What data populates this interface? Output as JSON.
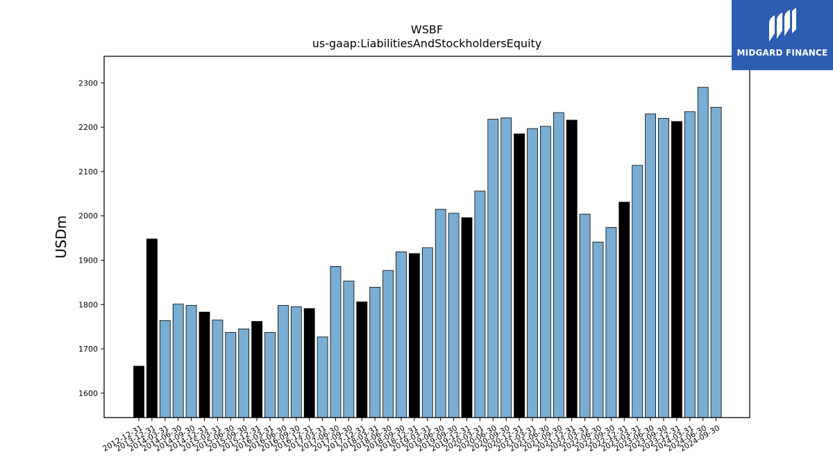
{
  "brand": {
    "name": "MIDGARD FINANCE",
    "bg_color": "#2c5db1",
    "fg_color": "#ffffff",
    "icon": "midgard-logo-icon"
  },
  "chart_data": {
    "type": "bar",
    "title": "WSBF",
    "subtitle": "us-gaap:LiabilitiesAndStockholdersEquity",
    "xlabel": "",
    "ylabel": "USDm",
    "ylim": [
      1545,
      2360
    ],
    "yticks": [
      1600,
      1700,
      1800,
      1900,
      2000,
      2100,
      2200,
      2300
    ],
    "grid": false,
    "colors": {
      "quarter": "#7aadd3",
      "year_end": "#000000",
      "edge": "#000000"
    },
    "categories": [
      "2012-12-31",
      "2013-12-31",
      "2014-03-31",
      "2014-06-30",
      "2014-09-30",
      "2014-12-31",
      "2015-03-31",
      "2015-06-30",
      "2015-09-30",
      "2015-12-31",
      "2016-03-31",
      "2016-06-30",
      "2016-09-30",
      "2016-12-31",
      "2017-03-31",
      "2017-06-30",
      "2017-09-30",
      "2017-12-31",
      "2018-03-31",
      "2018-06-30",
      "2018-09-30",
      "2018-12-31",
      "2019-03-31",
      "2019-06-30",
      "2019-09-30",
      "2019-12-31",
      "2020-03-31",
      "2020-06-30",
      "2020-09-30",
      "2020-12-31",
      "2021-03-31",
      "2021-06-30",
      "2021-09-30",
      "2021-12-31",
      "2022-03-31",
      "2022-06-30",
      "2022-09-30",
      "2022-12-31",
      "2023-03-31",
      "2023-06-30",
      "2023-09-30",
      "2023-12-31",
      "2024-03-31",
      "2024-06-30",
      "2024-09-30"
    ],
    "values": [
      1661,
      1948,
      1764,
      1801,
      1798,
      1783,
      1765,
      1737,
      1745,
      1762,
      1737,
      1798,
      1795,
      1791,
      1727,
      1886,
      1853,
      1806,
      1839,
      1877,
      1919,
      1915,
      1928,
      2015,
      2006,
      1996,
      2056,
      2218,
      2221,
      2185,
      2197,
      2202,
      2233,
      2216,
      2004,
      1941,
      1974,
      2031,
      2114,
      2230,
      2220,
      2213,
      2235,
      2290,
      2245
    ],
    "year_end": [
      true,
      true,
      false,
      false,
      false,
      true,
      false,
      false,
      false,
      true,
      false,
      false,
      false,
      true,
      false,
      false,
      false,
      true,
      false,
      false,
      false,
      true,
      false,
      false,
      false,
      true,
      false,
      false,
      false,
      true,
      false,
      false,
      false,
      true,
      false,
      false,
      false,
      true,
      false,
      false,
      false,
      true,
      false,
      false,
      false
    ]
  }
}
